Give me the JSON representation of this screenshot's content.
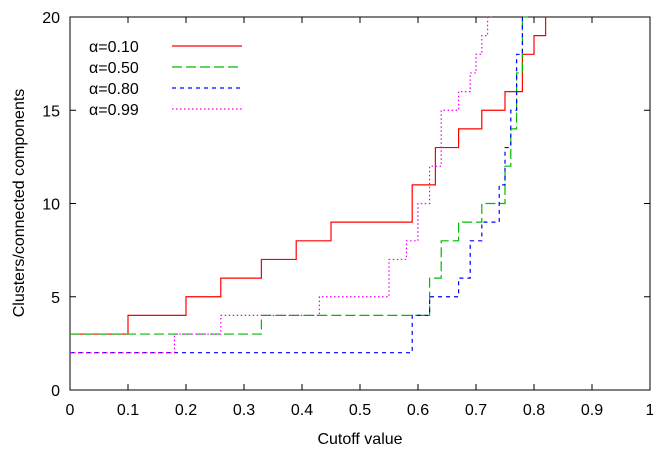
{
  "chart_data": {
    "type": "line",
    "title": "",
    "xlabel": "Cutoff value",
    "ylabel": "Clusters/connected components",
    "xlim": [
      0,
      1
    ],
    "ylim": [
      0,
      20
    ],
    "x_ticks": [
      "0",
      "0.1",
      "0.2",
      "0.3",
      "0.4",
      "0.5",
      "0.6",
      "0.7",
      "0.8",
      "0.9",
      "1"
    ],
    "y_ticks": [
      "0",
      "5",
      "10",
      "15",
      "20"
    ],
    "grid": false,
    "legend_position": "top-left",
    "series": [
      {
        "name": "α=0.10",
        "color": "#ff0000",
        "dash": "solid",
        "x": [
          0,
          0.1,
          0.1,
          0.2,
          0.2,
          0.26,
          0.26,
          0.33,
          0.33,
          0.39,
          0.39,
          0.45,
          0.45,
          0.59,
          0.59,
          0.63,
          0.63,
          0.67,
          0.67,
          0.71,
          0.71,
          0.75,
          0.75,
          0.78,
          0.78,
          0.8,
          0.8,
          0.82,
          0.82
        ],
        "y": [
          3,
          3,
          4,
          4,
          5,
          5,
          6,
          6,
          7,
          7,
          8,
          8,
          9,
          9,
          11,
          11,
          13,
          13,
          14,
          14,
          15,
          15,
          16,
          16,
          18,
          18,
          19,
          19,
          20
        ]
      },
      {
        "name": "α=0.50",
        "color": "#00bb00",
        "dash": "long-dash",
        "x": [
          0,
          0.18,
          0.18,
          0.33,
          0.33,
          0.53,
          0.53,
          0.59,
          0.59,
          0.62,
          0.62,
          0.64,
          0.64,
          0.67,
          0.67,
          0.71,
          0.71,
          0.75,
          0.75,
          0.76,
          0.76,
          0.77,
          0.77,
          0.78,
          0.78,
          0.79
        ],
        "y": [
          3,
          3,
          3,
          3,
          4,
          4,
          4,
          4,
          4,
          4,
          6,
          6,
          8,
          8,
          9,
          9,
          10,
          10,
          12,
          12,
          14,
          14,
          17,
          17,
          20,
          20
        ]
      },
      {
        "name": "α=0.80",
        "color": "#0000ff",
        "dash": "short-dash",
        "x": [
          0,
          0.59,
          0.59,
          0.62,
          0.62,
          0.67,
          0.67,
          0.69,
          0.69,
          0.71,
          0.71,
          0.74,
          0.74,
          0.75,
          0.75,
          0.76,
          0.76,
          0.77,
          0.77,
          0.78,
          0.78
        ],
        "y": [
          2,
          2,
          4,
          4,
          5,
          5,
          6,
          6,
          8,
          8,
          9,
          9,
          11,
          11,
          13,
          13,
          15,
          15,
          18,
          18,
          20
        ]
      },
      {
        "name": "α=0.99",
        "color": "#ee00ee",
        "dash": "dotted",
        "x": [
          0,
          0.18,
          0.18,
          0.26,
          0.26,
          0.43,
          0.43,
          0.55,
          0.55,
          0.58,
          0.58,
          0.6,
          0.6,
          0.62,
          0.62,
          0.64,
          0.64,
          0.67,
          0.67,
          0.69,
          0.69,
          0.7,
          0.7,
          0.71,
          0.71,
          0.72,
          0.72,
          0.73,
          0.73
        ],
        "y": [
          2,
          2,
          3,
          3,
          4,
          4,
          5,
          5,
          7,
          7,
          8,
          8,
          10,
          10,
          12,
          12,
          15,
          15,
          16,
          16,
          17,
          17,
          18,
          18,
          19,
          19,
          20,
          20,
          20
        ]
      }
    ]
  }
}
